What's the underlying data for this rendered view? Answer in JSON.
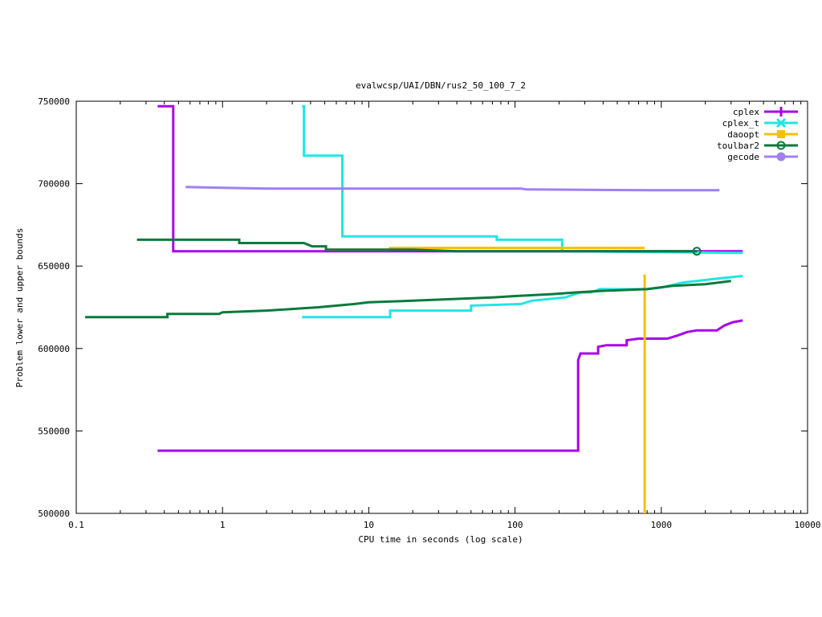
{
  "chart_data": {
    "type": "line",
    "title": "evalwcsp/UAI/DBN/rus2_50_100_7_2",
    "xlabel": "CPU time in seconds (log scale)",
    "ylabel": "Problem lower and upper bounds",
    "x_scale": "log",
    "xlim": [
      0.1,
      10000
    ],
    "ylim": [
      500000,
      750000
    ],
    "x_ticks": [
      0.1,
      1,
      10,
      100,
      1000,
      10000
    ],
    "x_tick_labels": [
      "0.1",
      "1",
      "10",
      "100",
      "1000",
      "10000"
    ],
    "y_ticks": [
      500000,
      550000,
      600000,
      650000,
      700000,
      750000
    ],
    "y_tick_labels": [
      "500000",
      "550000",
      "600000",
      "650000",
      "700000",
      "750000"
    ],
    "grid": false,
    "legend_position": "top-right",
    "series": [
      {
        "name": "cplex",
        "color": "#aa00ee",
        "marker": "plus",
        "upper": [
          [
            0.36,
            747000
          ],
          [
            0.46,
            747000
          ],
          [
            0.46,
            659000
          ],
          [
            3600,
            659000
          ]
        ],
        "lower": [
          [
            0.36,
            538000
          ],
          [
            270,
            538000
          ],
          [
            270,
            593000
          ],
          [
            280,
            597000
          ],
          [
            370,
            597000
          ],
          [
            370,
            601000
          ],
          [
            420,
            602000
          ],
          [
            580,
            602000
          ],
          [
            580,
            605000
          ],
          [
            700,
            606000
          ],
          [
            1100,
            606000
          ],
          [
            1300,
            608000
          ],
          [
            1500,
            610000
          ],
          [
            1750,
            611000
          ],
          [
            2400,
            611000
          ],
          [
            2700,
            614000
          ],
          [
            3100,
            616000
          ],
          [
            3600,
            617000
          ]
        ]
      },
      {
        "name": "cplex_t",
        "color": "#22e5e5",
        "marker": "x",
        "upper": [
          [
            3.5,
            747000
          ],
          [
            3.6,
            747000
          ],
          [
            3.6,
            717000
          ],
          [
            6.6,
            717000
          ],
          [
            6.6,
            668000
          ],
          [
            75,
            668000
          ],
          [
            75,
            666000
          ],
          [
            210,
            666000
          ],
          [
            210,
            659000
          ],
          [
            3600,
            658000
          ]
        ],
        "lower": [
          [
            3.5,
            619000
          ],
          [
            14,
            619000
          ],
          [
            14,
            623000
          ],
          [
            50,
            623000
          ],
          [
            50,
            626000
          ],
          [
            110,
            627000
          ],
          [
            130,
            629000
          ],
          [
            220,
            631000
          ],
          [
            280,
            634000
          ],
          [
            330,
            634000
          ],
          [
            380,
            636000
          ],
          [
            800,
            636000
          ],
          [
            1000,
            637000
          ],
          [
            1400,
            640000
          ],
          [
            2200,
            642000
          ],
          [
            3600,
            644000
          ]
        ]
      },
      {
        "name": "daoopt",
        "color": "#f5c000",
        "marker": "square",
        "upper": [
          [
            5.1,
            660000
          ],
          [
            14,
            660000
          ],
          [
            14,
            661000
          ],
          [
            770,
            661000
          ]
        ],
        "drop": [
          [
            770,
            645000
          ],
          [
            770,
            500000
          ]
        ]
      },
      {
        "name": "toulbar2",
        "color": "#0a7a3c",
        "marker": "circle-open",
        "upper": [
          [
            0.26,
            666000
          ],
          [
            1.3,
            666000
          ],
          [
            1.3,
            664000
          ],
          [
            3.6,
            664000
          ],
          [
            4.1,
            662000
          ],
          [
            5.1,
            662000
          ],
          [
            5.1,
            660000
          ],
          [
            20,
            660000
          ],
          [
            40,
            659000
          ],
          [
            1750,
            659000
          ]
        ],
        "lower": [
          [
            0.115,
            619000
          ],
          [
            0.42,
            619000
          ],
          [
            0.42,
            621000
          ],
          [
            0.95,
            621000
          ],
          [
            1.0,
            622000
          ],
          [
            2.0,
            623000
          ],
          [
            3.0,
            624000
          ],
          [
            4.5,
            625000
          ],
          [
            8,
            627000
          ],
          [
            10,
            628000
          ],
          [
            20,
            629000
          ],
          [
            70,
            631000
          ],
          [
            110,
            632000
          ],
          [
            180,
            633000
          ],
          [
            260,
            634000
          ],
          [
            400,
            635000
          ],
          [
            800,
            636000
          ],
          [
            1200,
            638000
          ],
          [
            2000,
            639000
          ],
          [
            3000,
            641000
          ]
        ]
      },
      {
        "name": "gecode",
        "color": "#a080f0",
        "marker": "circle-filled",
        "upper": [
          [
            0.56,
            698000
          ],
          [
            1.0,
            697500
          ],
          [
            2.0,
            697000
          ],
          [
            110,
            697000
          ],
          [
            120,
            696500
          ],
          [
            850,
            696000
          ],
          [
            2500,
            696000
          ]
        ]
      }
    ]
  }
}
